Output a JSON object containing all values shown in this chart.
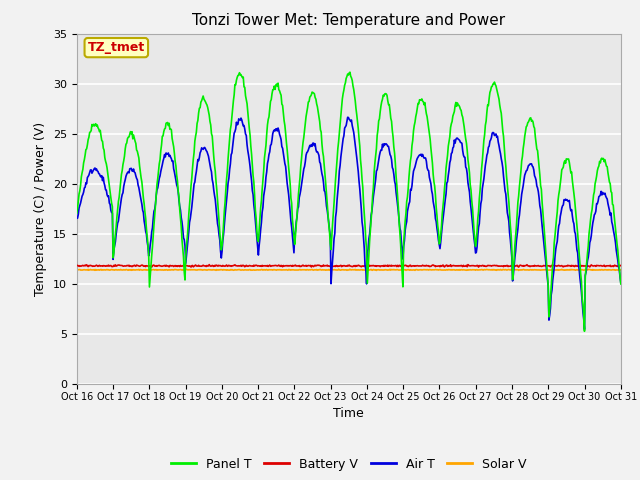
{
  "title": "Tonzi Tower Met: Temperature and Power",
  "xlabel": "Time",
  "ylabel": "Temperature (C) / Power (V)",
  "xlim_days": [
    16,
    31
  ],
  "ylim": [
    0,
    35
  ],
  "yticks": [
    0,
    5,
    10,
    15,
    20,
    25,
    30,
    35
  ],
  "xtick_labels": [
    "Oct 16",
    "Oct 17",
    "Oct 18",
    "Oct 19",
    "Oct 20",
    "Oct 21",
    "Oct 22",
    "Oct 23",
    "Oct 24",
    "Oct 25",
    "Oct 26",
    "Oct 27",
    "Oct 28",
    "Oct 29",
    "Oct 30",
    "Oct 31"
  ],
  "battery_v": 11.8,
  "solar_v": 11.4,
  "panel_color": "#00EE00",
  "battery_color": "#DD0000",
  "air_color": "#0000DD",
  "solar_color": "#FFA500",
  "bg_color": "#E8E8E8",
  "fig_bg_color": "#F2F2F2",
  "grid_color": "#FFFFFF",
  "annotation_text": "TZ_tmet",
  "annotation_color": "#CC0000",
  "annotation_bg": "#FFFFC0",
  "annotation_edge": "#BBAA00",
  "title_fontsize": 11,
  "label_fontsize": 9,
  "tick_fontsize": 8,
  "legend_fontsize": 9,
  "line_width": 1.2,
  "panel_peaks": [
    26,
    25,
    26,
    28.5,
    31,
    30,
    29,
    31,
    29,
    28.5,
    28,
    30,
    26.5,
    22.5,
    22.5
  ],
  "panel_troughs": [
    17,
    12.5,
    9.5,
    12.5,
    13.5,
    14,
    13.5,
    13,
    9.5,
    13.5,
    13.5,
    13.5,
    9.5,
    5.5,
    10
  ],
  "air_peaks": [
    21.5,
    21.5,
    23,
    23.5,
    26.5,
    25.5,
    24,
    26.5,
    24,
    23,
    24.5,
    25,
    22,
    18.5,
    19
  ],
  "air_troughs": [
    16.5,
    12.5,
    13,
    12,
    13,
    12.5,
    14.5,
    9.5,
    12.5,
    13.5,
    13,
    12.5,
    9.5,
    5.5,
    10
  ],
  "air_start": 17.0
}
